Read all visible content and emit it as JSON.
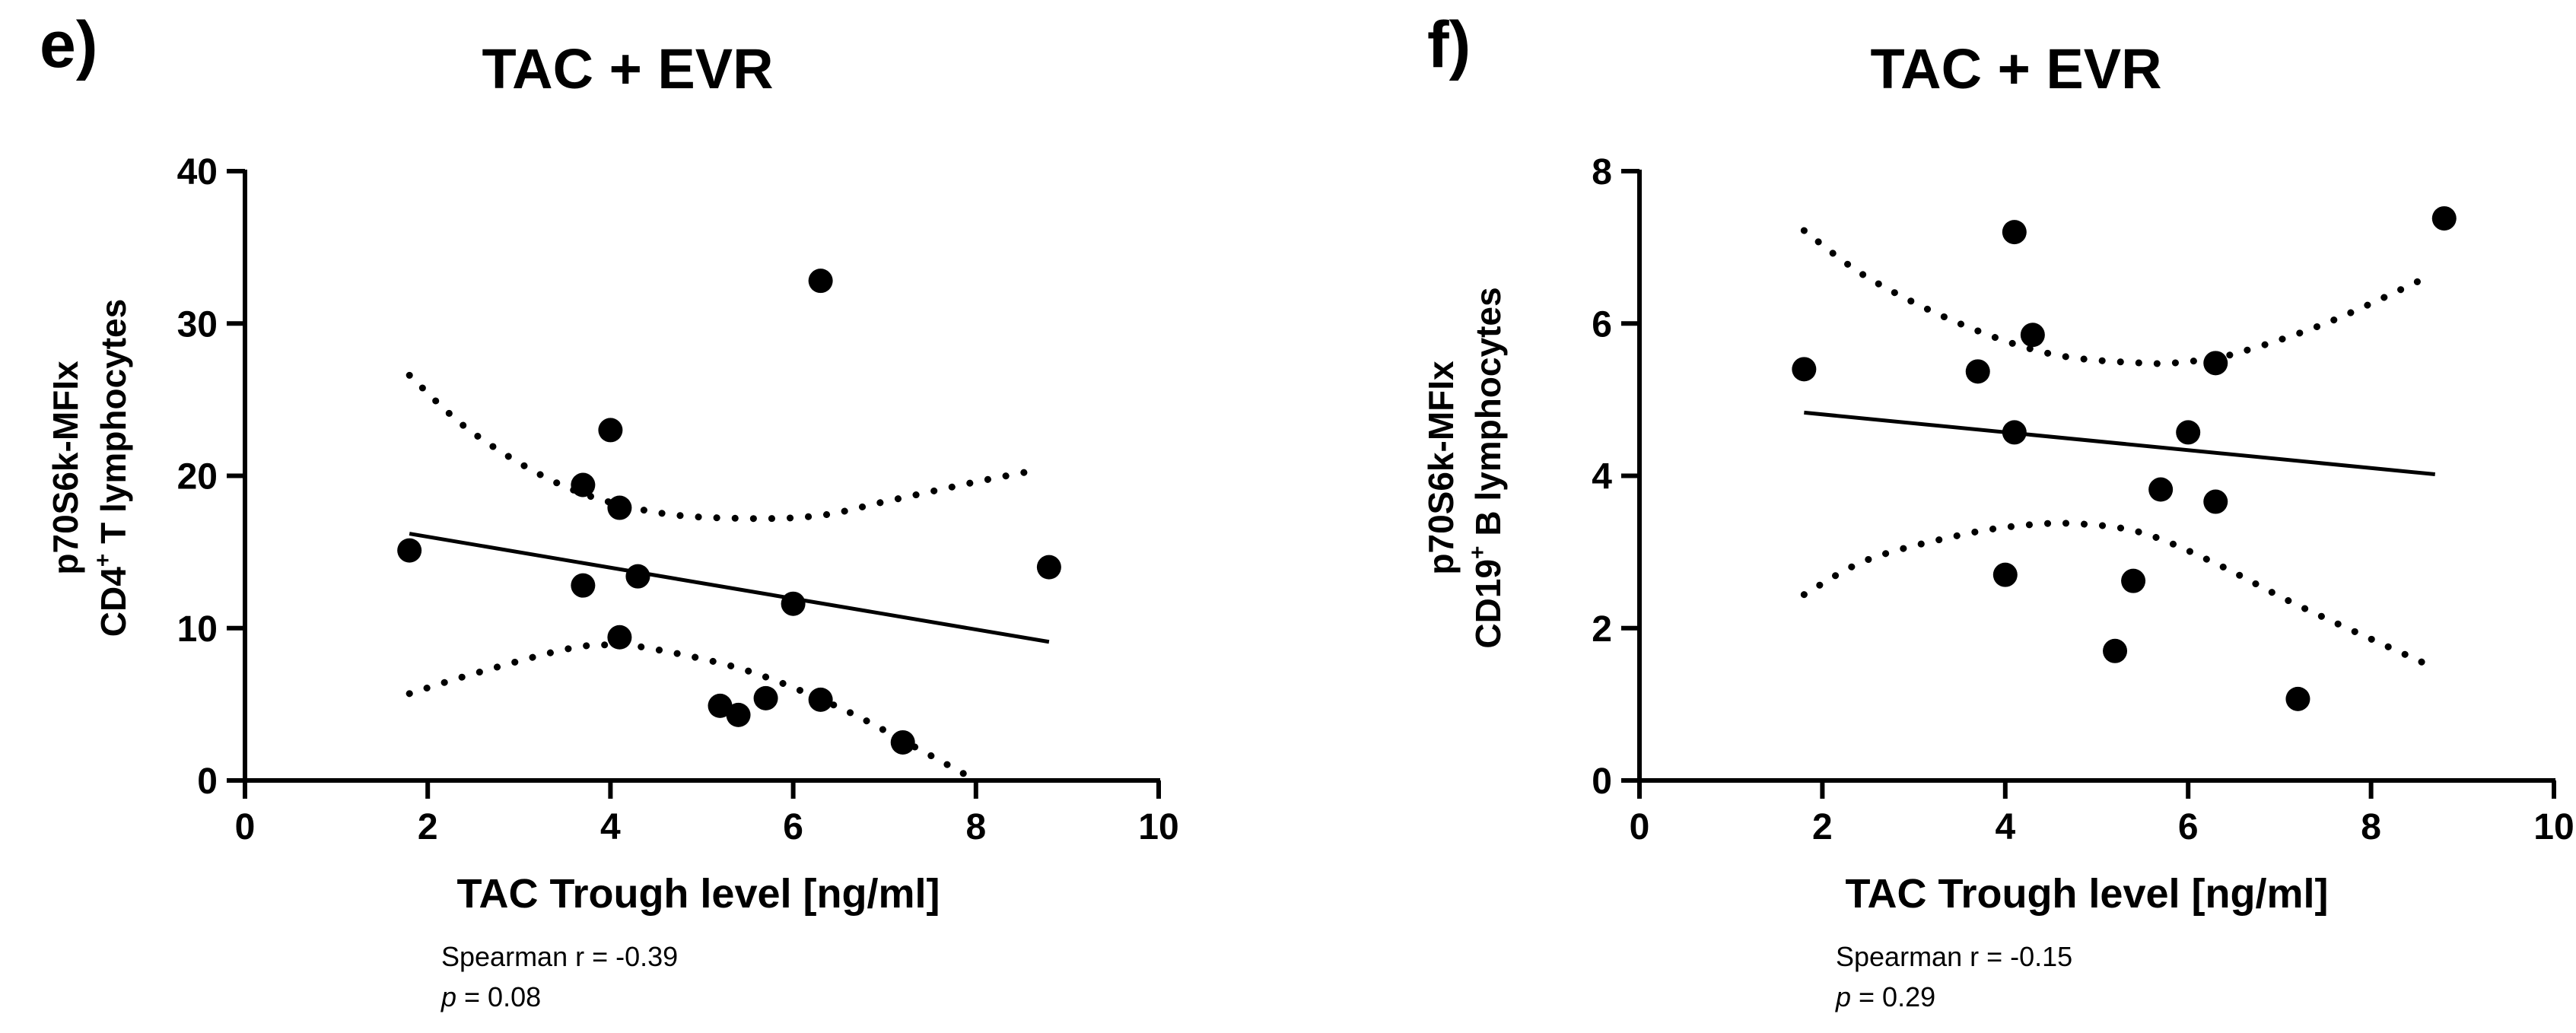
{
  "chart_data": [
    {
      "type": "scatter",
      "panel_label": "e)",
      "title": "TAC + EVR",
      "xlabel": "TAC Trough level [ng/ml]",
      "ylabel_line1": "p70S6k-MFIx",
      "ylabel_line2_pre": "CD4",
      "ylabel_line2_sup": "+",
      "ylabel_line2_post": " T lymphocytes",
      "xlim": [
        0,
        10
      ],
      "ylim": [
        0,
        40
      ],
      "xticks": [
        0,
        2,
        4,
        6,
        8,
        10
      ],
      "yticks": [
        0,
        10,
        20,
        30,
        40
      ],
      "points": [
        {
          "x": 1.8,
          "y": 15.1
        },
        {
          "x": 3.7,
          "y": 19.4
        },
        {
          "x": 3.7,
          "y": 12.8
        },
        {
          "x": 4.0,
          "y": 23.0
        },
        {
          "x": 4.1,
          "y": 17.9
        },
        {
          "x": 4.1,
          "y": 9.4
        },
        {
          "x": 4.3,
          "y": 13.4
        },
        {
          "x": 5.2,
          "y": 4.9
        },
        {
          "x": 5.4,
          "y": 4.3
        },
        {
          "x": 5.7,
          "y": 5.4
        },
        {
          "x": 6.0,
          "y": 11.6
        },
        {
          "x": 6.3,
          "y": 32.8
        },
        {
          "x": 6.3,
          "y": 5.3
        },
        {
          "x": 7.2,
          "y": 2.5
        },
        {
          "x": 8.8,
          "y": 14.0
        }
      ],
      "regression": {
        "x": [
          1.8,
          8.8
        ],
        "y": [
          16.2,
          9.1
        ]
      },
      "ci_upper": {
        "x": [
          1.8,
          2.5,
          3.5,
          4.5,
          5.5,
          6.3,
          7.0,
          8.0,
          8.6
        ],
        "y": [
          26.6,
          22.8,
          19.3,
          17.6,
          17.2,
          17.4,
          18.3,
          19.6,
          20.3
        ]
      },
      "ci_lower": {
        "x": [
          1.8,
          2.5,
          3.5,
          4.0,
          4.5,
          5.5,
          6.5,
          7.3,
          8.0
        ],
        "y": [
          5.7,
          7.0,
          8.6,
          8.9,
          8.6,
          7.2,
          4.8,
          2.3,
          0.0
        ]
      },
      "stat_r": "Spearman r = -0.39",
      "stat_p_label": "p",
      "stat_p_value": " = 0.08"
    },
    {
      "type": "scatter",
      "panel_label": "f)",
      "title": "TAC + EVR",
      "xlabel": "TAC Trough level [ng/ml]",
      "ylabel_line1": "p70S6k-MFIx",
      "ylabel_line2_pre": "CD19",
      "ylabel_line2_sup": "+",
      "ylabel_line2_post": " B lymphocytes",
      "xlim": [
        0,
        10
      ],
      "ylim": [
        0,
        8
      ],
      "xticks": [
        0,
        2,
        4,
        6,
        8,
        10
      ],
      "yticks": [
        0,
        2,
        4,
        6,
        8
      ],
      "points": [
        {
          "x": 1.8,
          "y": 5.4
        },
        {
          "x": 3.7,
          "y": 5.37
        },
        {
          "x": 4.0,
          "y": 2.7
        },
        {
          "x": 4.1,
          "y": 7.2
        },
        {
          "x": 4.1,
          "y": 4.57
        },
        {
          "x": 4.3,
          "y": 5.85
        },
        {
          "x": 5.2,
          "y": 1.7
        },
        {
          "x": 5.4,
          "y": 2.62
        },
        {
          "x": 5.7,
          "y": 3.82
        },
        {
          "x": 6.0,
          "y": 4.57
        },
        {
          "x": 6.3,
          "y": 5.48
        },
        {
          "x": 6.3,
          "y": 3.66
        },
        {
          "x": 7.2,
          "y": 1.07
        },
        {
          "x": 8.8,
          "y": 7.38
        }
      ],
      "regression": {
        "x": [
          1.8,
          8.7
        ],
        "y": [
          4.83,
          4.02
        ]
      },
      "ci_upper": {
        "x": [
          1.8,
          2.5,
          3.5,
          4.5,
          5.5,
          6.0,
          6.5,
          7.5,
          8.6
        ],
        "y": [
          7.22,
          6.6,
          6.0,
          5.6,
          5.48,
          5.5,
          5.6,
          6.0,
          6.6
        ]
      },
      "ci_lower": {
        "x": [
          1.8,
          2.5,
          3.5,
          4.2,
          4.8,
          5.5,
          6.3,
          7.2,
          8.6
        ],
        "y": [
          2.44,
          2.9,
          3.22,
          3.35,
          3.37,
          3.25,
          2.85,
          2.3,
          1.53
        ]
      },
      "stat_r": "Spearman r = -0.15",
      "stat_p_label": "p",
      "stat_p_value": " = 0.29"
    }
  ]
}
